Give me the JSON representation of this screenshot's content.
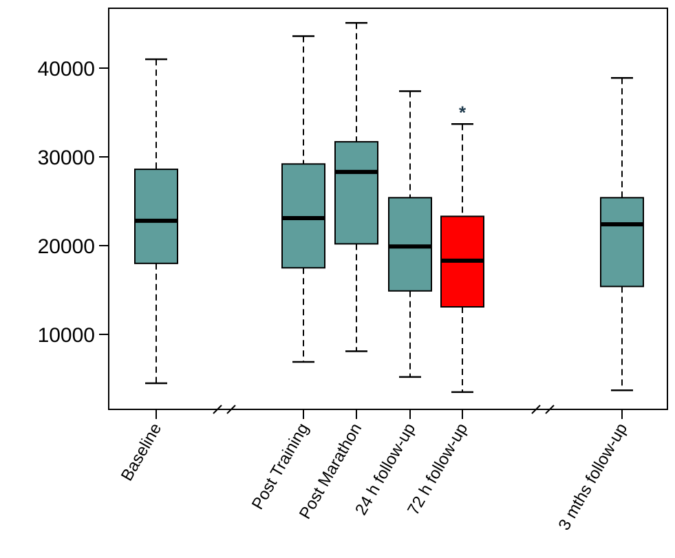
{
  "chart_data": {
    "type": "boxplot",
    "title": "",
    "xlabel": "",
    "ylabel": "",
    "ylim": [
      2500,
      47500
    ],
    "yticks": [
      10000,
      20000,
      30000,
      40000
    ],
    "ytick_labels": [
      "10000",
      "20000",
      "30000",
      "40000"
    ],
    "colors": {
      "default_fill": "#5f9e9c",
      "highlight_fill": "#ff0000",
      "stroke": "#000000"
    },
    "axis_breaks": [
      "after-baseline",
      "after-72h"
    ],
    "boxes": [
      {
        "label": "Baseline",
        "slot": 0,
        "whisker_low": 4500,
        "q1": 18000,
        "median": 22800,
        "q3": 28600,
        "whisker_high": 41000,
        "highlight": false,
        "annotation": ""
      },
      {
        "label": "Post Training",
        "slot": 1,
        "whisker_low": 6900,
        "q1": 17500,
        "median": 23100,
        "q3": 29200,
        "whisker_high": 43600,
        "highlight": false,
        "annotation": ""
      },
      {
        "label": "Post Marathon",
        "slot": 2,
        "whisker_low": 8100,
        "q1": 20200,
        "median": 28300,
        "q3": 31700,
        "whisker_high": 45100,
        "highlight": false,
        "annotation": ""
      },
      {
        "label": "24 h follow-up",
        "slot": 3,
        "whisker_low": 5200,
        "q1": 14900,
        "median": 19900,
        "q3": 25400,
        "whisker_high": 37400,
        "highlight": false,
        "annotation": ""
      },
      {
        "label": "72 h follow-up",
        "slot": 4,
        "whisker_low": 3500,
        "q1": 13100,
        "median": 18300,
        "q3": 23300,
        "whisker_high": 33700,
        "highlight": true,
        "annotation": "*"
      },
      {
        "label": "3 mths follow-up",
        "slot": 5,
        "whisker_low": 3700,
        "q1": 15400,
        "median": 22400,
        "q3": 25400,
        "whisker_high": 38900,
        "highlight": false,
        "annotation": ""
      }
    ]
  }
}
